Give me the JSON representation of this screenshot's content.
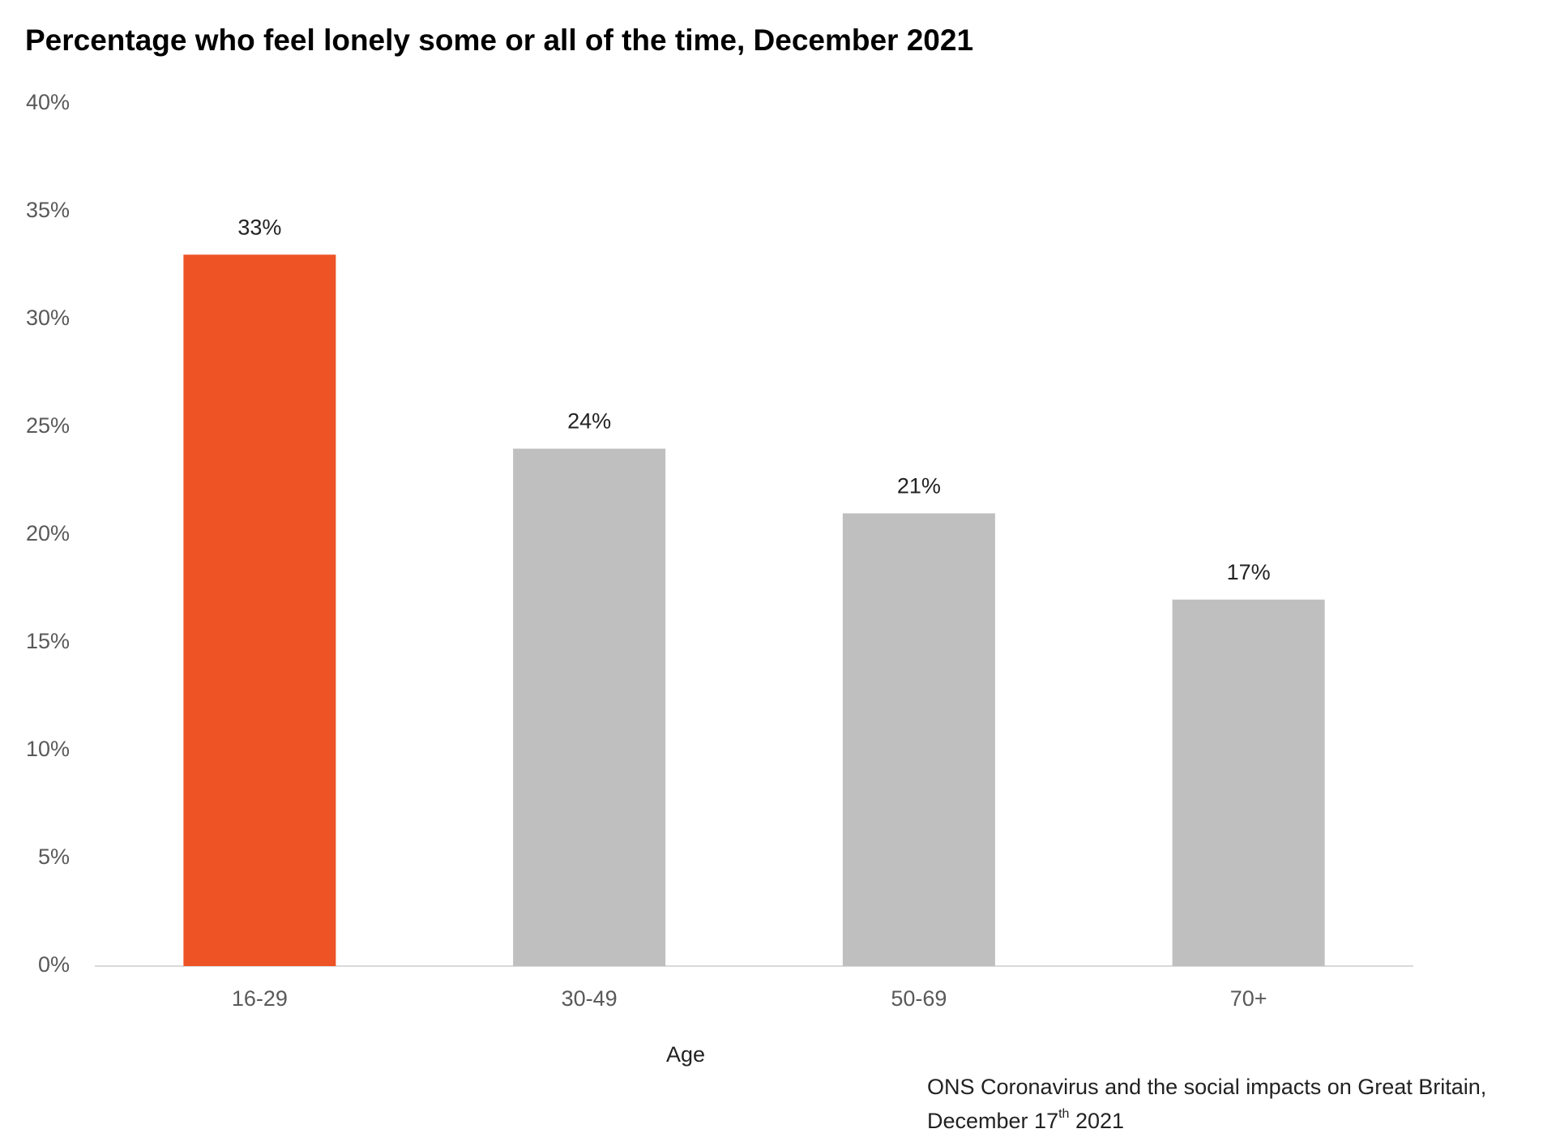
{
  "chart_data": {
    "type": "bar",
    "title": "Percentage who feel lonely some or all of the time, December 2021",
    "x_label": "Age",
    "categories": [
      "16-29",
      "30-49",
      "50-69",
      "70+"
    ],
    "values": [
      33,
      24,
      21,
      17
    ],
    "value_labels": [
      "33%",
      "24%",
      "21%",
      "17%"
    ],
    "colors": [
      "#ee5326",
      "#bfbfbf",
      "#bfbfbf",
      "#bfbfbf"
    ],
    "ylim": [
      0,
      40
    ],
    "yticks": [
      {
        "value": 0,
        "label": "0%"
      },
      {
        "value": 5,
        "label": "5%"
      },
      {
        "value": 10,
        "label": "10%"
      },
      {
        "value": 15,
        "label": "15%"
      },
      {
        "value": 20,
        "label": "20%"
      },
      {
        "value": 25,
        "label": "25%"
      },
      {
        "value": 30,
        "label": "30%"
      },
      {
        "value": 35,
        "label": "35%"
      },
      {
        "value": 40,
        "label": "40%"
      }
    ],
    "grid": false,
    "source": {
      "line1": "ONS Coronavirus and the social impacts on Great Britain,",
      "line2_start": "December 17",
      "line2_sup": "th",
      "line2_end": " 2021"
    }
  }
}
